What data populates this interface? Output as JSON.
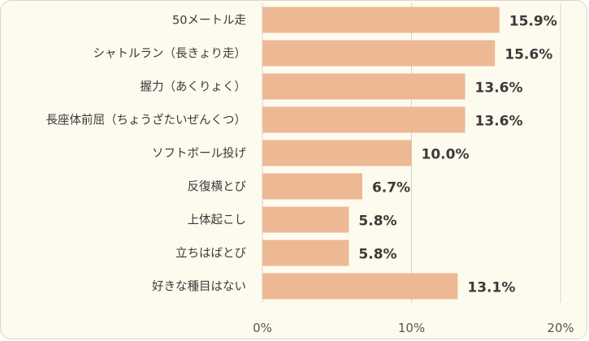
{
  "chart_data": {
    "type": "bar",
    "orientation": "horizontal",
    "categories": [
      "50メートル走",
      "シャトルラン（長きょり走）",
      "握力（あくりょく）",
      "長座体前屈（ちょうざたいぜんくつ）",
      "ソフトボール投げ",
      "反復横とび",
      "上体起こし",
      "立ちはばとび",
      "好きな種目はない"
    ],
    "values": [
      15.9,
      15.6,
      13.6,
      13.6,
      10.0,
      6.7,
      5.8,
      5.8,
      13.1
    ],
    "value_labels": [
      "15.9%",
      "15.6%",
      "13.6%",
      "13.6%",
      "10.0%",
      "6.7%",
      "5.8%",
      "5.8%",
      "13.1%"
    ],
    "xlim": [
      0,
      20
    ],
    "x_ticks": [
      "0%",
      "10%",
      "20%"
    ],
    "grid": true,
    "colors": {
      "bar": "#edb994",
      "grid": "#d4d4d4",
      "background": "#fdfbee"
    }
  }
}
